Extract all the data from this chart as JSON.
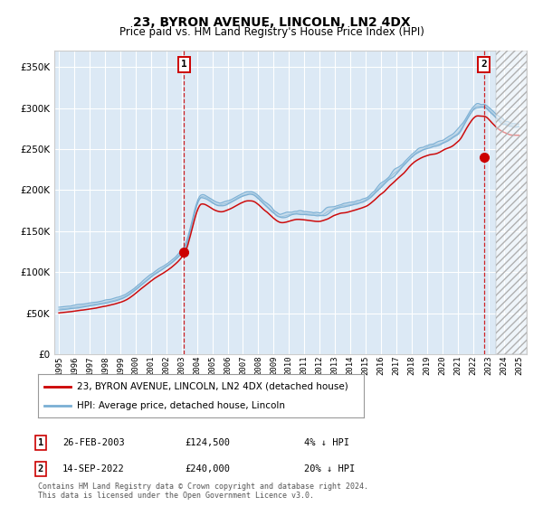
{
  "title": "23, BYRON AVENUE, LINCOLN, LN2 4DX",
  "subtitle": "Price paid vs. HM Land Registry's House Price Index (HPI)",
  "title_fontsize": 10,
  "subtitle_fontsize": 8.5,
  "background_color": "#dce9f5",
  "grid_color": "#ffffff",
  "y_ticks": [
    0,
    50000,
    100000,
    150000,
    200000,
    250000,
    300000,
    350000
  ],
  "ylim": [
    0,
    370000
  ],
  "start_year": 1995,
  "end_year": 2025,
  "sale1_year": 2003.15,
  "sale1_value": 124500,
  "sale2_year": 2022.71,
  "sale2_value": 240000,
  "sale1_date_str": "26-FEB-2003",
  "sale1_price_str": "£124,500",
  "sale1_hpi_str": "4% ↓ HPI",
  "sale2_date_str": "14-SEP-2022",
  "sale2_price_str": "£240,000",
  "sale2_hpi_str": "20% ↓ HPI",
  "legend_line1": "23, BYRON AVENUE, LINCOLN, LN2 4DX (detached house)",
  "legend_line2": "HPI: Average price, detached house, Lincoln",
  "footer": "Contains HM Land Registry data © Crown copyright and database right 2024.\nThis data is licensed under the Open Government Licence v3.0.",
  "red_line_color": "#cc0000",
  "blue_line_color": "#7aafd4",
  "blue_fill_color": "#c5daea",
  "fig_bg": "#f0f0f0",
  "future_cutoff": 2023.5
}
